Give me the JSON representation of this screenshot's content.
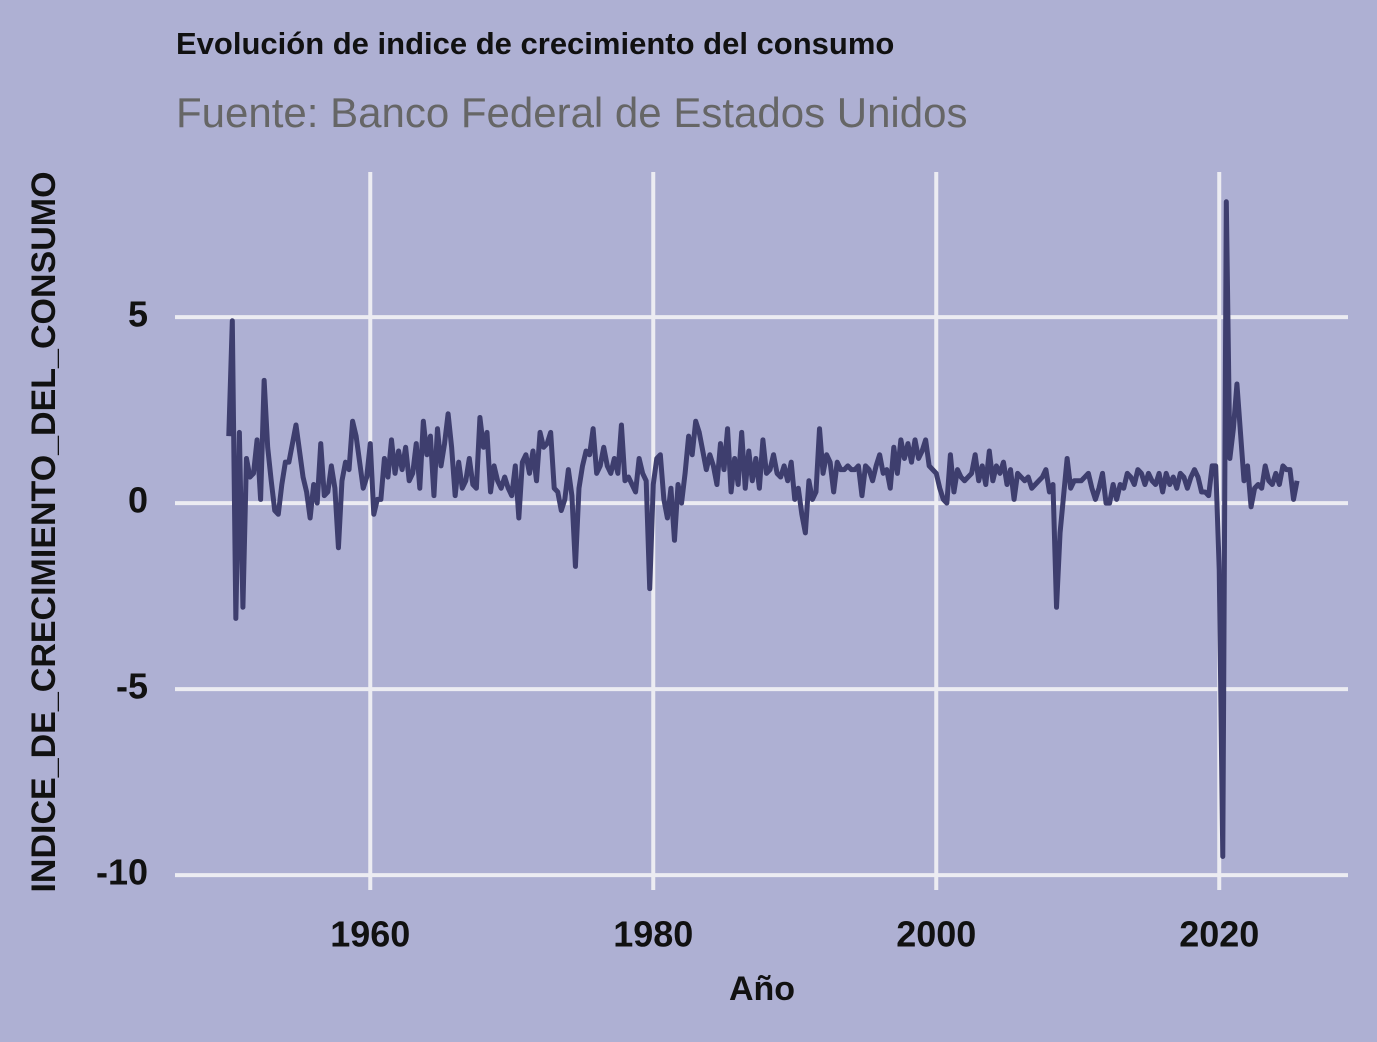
{
  "chart_data": {
    "type": "line",
    "title": "Evolución de indice de crecimiento del consumo",
    "subtitle": "Fuente: Banco Federal de Estados Unidos",
    "x_label": "Año",
    "y_label": "INDICE_DE_CRECIMIENTO_DEL_CONSUMO",
    "xlim": [
      1946.2,
      2029.1
    ],
    "ylim": [
      -10.4,
      8.9
    ],
    "xticks": [
      1960,
      1980,
      2000,
      2020
    ],
    "yticks": [
      -10,
      -5,
      0,
      5
    ],
    "grid": true,
    "series": [
      {
        "name": "INDICE_DE_CRECIMIENTO_DEL_CONSUMO",
        "color": "#3e3e6e",
        "x": [
          1950,
          1950.25,
          1950.5,
          1950.75,
          1951,
          1951.25,
          1951.5,
          1951.75,
          1952,
          1952.25,
          1952.5,
          1952.75,
          1953,
          1953.25,
          1953.5,
          1953.75,
          1954,
          1954.25,
          1954.5,
          1954.75,
          1955,
          1955.25,
          1955.5,
          1955.75,
          1956,
          1956.25,
          1956.5,
          1956.75,
          1957,
          1957.25,
          1957.5,
          1957.75,
          1958,
          1958.25,
          1958.5,
          1958.75,
          1959,
          1959.25,
          1959.5,
          1959.75,
          1960,
          1960.25,
          1960.5,
          1960.75,
          1961,
          1961.25,
          1961.5,
          1961.75,
          1962,
          1962.25,
          1962.5,
          1962.75,
          1963,
          1963.25,
          1963.5,
          1963.75,
          1964,
          1964.25,
          1964.5,
          1964.75,
          1965,
          1965.25,
          1965.5,
          1965.75,
          1966,
          1966.25,
          1966.5,
          1966.75,
          1967,
          1967.25,
          1967.5,
          1967.75,
          1968,
          1968.25,
          1968.5,
          1968.75,
          1969,
          1969.25,
          1969.5,
          1969.75,
          1970,
          1970.25,
          1970.5,
          1970.75,
          1971,
          1971.25,
          1971.5,
          1971.75,
          1972,
          1972.25,
          1972.5,
          1972.75,
          1973,
          1973.25,
          1973.5,
          1973.75,
          1974,
          1974.25,
          1974.5,
          1974.75,
          1975,
          1975.25,
          1975.5,
          1975.75,
          1976,
          1976.25,
          1976.5,
          1976.75,
          1977,
          1977.25,
          1977.5,
          1977.75,
          1978,
          1978.25,
          1978.5,
          1978.75,
          1979,
          1979.25,
          1979.5,
          1979.75,
          1980,
          1980.25,
          1980.5,
          1980.75,
          1981,
          1981.25,
          1981.5,
          1981.75,
          1982,
          1982.25,
          1982.5,
          1982.75,
          1983,
          1983.25,
          1983.5,
          1983.75,
          1984,
          1984.25,
          1984.5,
          1984.75,
          1985,
          1985.25,
          1985.5,
          1985.75,
          1986,
          1986.25,
          1986.5,
          1986.75,
          1987,
          1987.25,
          1987.5,
          1987.75,
          1988,
          1988.25,
          1988.5,
          1988.75,
          1989,
          1989.25,
          1989.5,
          1989.75,
          1990,
          1990.25,
          1990.5,
          1990.75,
          1991,
          1991.25,
          1991.5,
          1991.75,
          1992,
          1992.25,
          1992.5,
          1992.75,
          1993,
          1993.25,
          1993.5,
          1993.75,
          1994,
          1994.25,
          1994.5,
          1994.75,
          1995,
          1995.25,
          1995.5,
          1995.75,
          1996,
          1996.25,
          1996.5,
          1996.75,
          1997,
          1997.25,
          1997.5,
          1997.75,
          1998,
          1998.25,
          1998.5,
          1998.75,
          1999,
          1999.25,
          1999.5,
          1999.75,
          2000,
          2000.25,
          2000.5,
          2000.75,
          2001,
          2001.25,
          2001.5,
          2001.75,
          2002,
          2002.25,
          2002.5,
          2002.75,
          2003,
          2003.25,
          2003.5,
          2003.75,
          2004,
          2004.25,
          2004.5,
          2004.75,
          2005,
          2005.25,
          2005.5,
          2005.75,
          2006,
          2006.25,
          2006.5,
          2006.75,
          2007,
          2007.25,
          2007.5,
          2007.75,
          2008,
          2008.25,
          2008.5,
          2008.75,
          2009,
          2009.25,
          2009.5,
          2009.75,
          2010,
          2010.25,
          2010.5,
          2010.75,
          2011,
          2011.25,
          2011.5,
          2011.75,
          2012,
          2012.25,
          2012.5,
          2012.75,
          2013,
          2013.25,
          2013.5,
          2013.75,
          2014,
          2014.25,
          2014.5,
          2014.75,
          2015,
          2015.25,
          2015.5,
          2015.75,
          2016,
          2016.25,
          2016.5,
          2016.75,
          2017,
          2017.25,
          2017.5,
          2017.75,
          2018,
          2018.25,
          2018.5,
          2018.75,
          2019,
          2019.25,
          2019.5,
          2019.75,
          2020,
          2020.25,
          2020.5,
          2020.75,
          2021,
          2021.25,
          2021.5,
          2021.75,
          2022,
          2022.25,
          2022.5,
          2022.75,
          2023,
          2023.25,
          2023.5,
          2023.75,
          2024,
          2024.25,
          2024.5,
          2024.75,
          2025,
          2025.25,
          2025.5
        ],
        "values": [
          1.8,
          4.9,
          -3.1,
          1.9,
          -2.8,
          1.2,
          0.7,
          0.8,
          1.7,
          0.1,
          3.3,
          1.5,
          0.6,
          -0.2,
          -0.3,
          0.5,
          1.1,
          1.1,
          1.6,
          2.1,
          1.4,
          0.7,
          0.3,
          -0.4,
          0.5,
          0.0,
          1.6,
          0.2,
          0.3,
          1.0,
          0.4,
          -1.2,
          0.6,
          1.1,
          0.9,
          2.2,
          1.8,
          1.1,
          0.4,
          0.7,
          1.6,
          -0.3,
          0.1,
          0.1,
          1.2,
          0.7,
          1.7,
          0.8,
          1.4,
          0.9,
          1.5,
          0.6,
          0.8,
          1.6,
          0.4,
          2.2,
          1.3,
          1.8,
          0.2,
          2.0,
          1.0,
          1.6,
          2.4,
          1.5,
          0.2,
          1.1,
          0.4,
          0.6,
          1.2,
          0.5,
          0.4,
          2.3,
          1.5,
          1.9,
          0.3,
          1.0,
          0.6,
          0.4,
          0.7,
          0.4,
          0.2,
          1.0,
          -0.4,
          1.1,
          1.3,
          0.8,
          1.4,
          0.6,
          1.9,
          1.5,
          1.6,
          1.9,
          0.4,
          0.3,
          -0.2,
          0.1,
          0.9,
          0.2,
          -1.7,
          0.4,
          1.0,
          1.4,
          1.3,
          2.0,
          0.8,
          1.0,
          1.5,
          1.0,
          0.8,
          1.2,
          0.8,
          2.1,
          0.6,
          0.7,
          0.5,
          0.3,
          1.2,
          0.8,
          0.6,
          -2.3,
          0.5,
          1.2,
          1.3,
          0.1,
          -0.4,
          0.4,
          -1.0,
          0.5,
          0.0,
          0.8,
          1.8,
          1.3,
          2.2,
          1.9,
          1.4,
          0.9,
          1.3,
          1.0,
          0.5,
          1.6,
          0.9,
          2.0,
          0.3,
          1.2,
          0.5,
          1.9,
          0.4,
          1.4,
          0.6,
          1.2,
          0.4,
          1.7,
          0.8,
          0.9,
          1.3,
          0.8,
          0.7,
          1.0,
          0.6,
          1.1,
          0.1,
          0.4,
          -0.3,
          -0.8,
          0.6,
          0.1,
          0.3,
          2.0,
          0.8,
          1.3,
          1.1,
          0.3,
          1.1,
          0.9,
          0.9,
          1.0,
          0.9,
          0.9,
          1.0,
          0.2,
          1.0,
          0.9,
          0.6,
          1.0,
          1.3,
          0.8,
          0.9,
          0.4,
          1.5,
          0.8,
          1.7,
          1.2,
          1.6,
          1.1,
          1.7,
          1.2,
          1.4,
          1.7,
          1.0,
          0.9,
          0.8,
          0.4,
          0.1,
          0.0,
          1.3,
          0.3,
          0.9,
          0.7,
          0.6,
          0.7,
          0.8,
          1.3,
          0.6,
          1.0,
          0.5,
          1.4,
          0.6,
          1.0,
          0.8,
          1.1,
          0.5,
          0.9,
          0.1,
          0.8,
          0.7,
          0.6,
          0.7,
          0.4,
          0.5,
          0.6,
          0.7,
          0.9,
          0.3,
          0.5,
          -2.8,
          -0.8,
          0.2,
          1.2,
          0.4,
          0.6,
          0.6,
          0.6,
          0.7,
          0.8,
          0.4,
          0.1,
          0.4,
          0.8,
          0.0,
          0.0,
          0.5,
          0.1,
          0.5,
          0.4,
          0.8,
          0.7,
          0.5,
          0.9,
          0.8,
          0.5,
          0.8,
          0.6,
          0.5,
          0.8,
          0.3,
          0.8,
          0.5,
          0.7,
          0.4,
          0.8,
          0.7,
          0.4,
          0.7,
          0.9,
          0.7,
          0.3,
          0.3,
          0.2,
          1.0,
          1.0,
          -1.8,
          -9.5,
          8.1,
          1.2,
          2.0,
          3.2,
          1.9,
          0.6,
          1.0,
          -0.1,
          0.4,
          0.5,
          0.4,
          1.0,
          0.6,
          0.5,
          0.8,
          0.5,
          1.0,
          0.9,
          0.9,
          0.1,
          0.6
        ]
      }
    ]
  }
}
